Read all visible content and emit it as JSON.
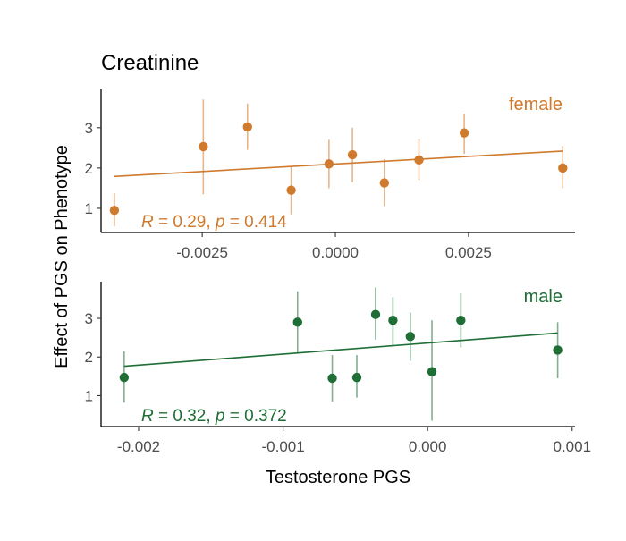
{
  "chart_data": {
    "type": "scatter",
    "title": "Creatinine",
    "ylabel": "Effect of PGS on Phenotype",
    "xlabel": "Testosterone PGS",
    "panels": [
      {
        "name": "female",
        "color": "#D07A2E",
        "stat_text": {
          "r_symbol": "R",
          "r_value": " = 0.29, ",
          "p_symbol": "p",
          "p_value": " = 0.414"
        },
        "xlim": [
          -0.0044,
          0.0045
        ],
        "ylim": [
          0.4,
          3.95
        ],
        "xticks": [
          -0.0025,
          0.0,
          0.0025
        ],
        "xtick_labels": [
          "-0.0025",
          "0.0000",
          "0.0025"
        ],
        "yticks": [
          1,
          2,
          3
        ],
        "ytick_labels": [
          "1",
          "2",
          "3"
        ],
        "points": [
          {
            "x": -0.00415,
            "y": 0.95,
            "lo": 0.55,
            "hi": 1.38
          },
          {
            "x": -0.00248,
            "y": 2.53,
            "lo": 1.35,
            "hi": 3.7
          },
          {
            "x": -0.00165,
            "y": 3.02,
            "lo": 2.45,
            "hi": 3.6
          },
          {
            "x": -0.00083,
            "y": 1.45,
            "lo": 0.85,
            "hi": 2.05
          },
          {
            "x": -0.00012,
            "y": 2.1,
            "lo": 1.5,
            "hi": 2.7
          },
          {
            "x": 0.00032,
            "y": 2.33,
            "lo": 1.65,
            "hi": 3.0
          },
          {
            "x": 0.00092,
            "y": 1.63,
            "lo": 1.05,
            "hi": 2.22
          },
          {
            "x": 0.00157,
            "y": 2.2,
            "lo": 1.7,
            "hi": 2.72
          },
          {
            "x": 0.00242,
            "y": 2.87,
            "lo": 2.35,
            "hi": 3.35
          },
          {
            "x": 0.00427,
            "y": 2.0,
            "lo": 1.5,
            "hi": 2.55
          }
        ],
        "trend": {
          "x0": -0.00415,
          "y0": 1.79,
          "x1": 0.00427,
          "y1": 2.42
        }
      },
      {
        "name": "male",
        "color": "#1E6E35",
        "stat_text": {
          "r_symbol": "R",
          "r_value": " = 0.32, ",
          "p_symbol": "p",
          "p_value": " = 0.372"
        },
        "xlim": [
          -0.00226,
          0.00102
        ],
        "ylim": [
          0.2,
          3.95
        ],
        "xticks": [
          -0.002,
          -0.001,
          0.0,
          0.001
        ],
        "xtick_labels": [
          "-0.002",
          "-0.001",
          "0.000",
          "0.001"
        ],
        "yticks": [
          1,
          2,
          3
        ],
        "yticks_labels_note": "",
        "ytick_labels": [
          "1",
          "2",
          "3"
        ],
        "points": [
          {
            "x": -0.0021,
            "y": 1.47,
            "lo": 0.82,
            "hi": 2.15
          },
          {
            "x": -0.0009,
            "y": 2.9,
            "lo": 2.1,
            "hi": 3.7
          },
          {
            "x": -0.00066,
            "y": 1.45,
            "lo": 0.85,
            "hi": 2.05
          },
          {
            "x": -0.00049,
            "y": 1.47,
            "lo": 0.95,
            "hi": 2.05
          },
          {
            "x": -0.00036,
            "y": 3.1,
            "lo": 2.45,
            "hi": 3.8
          },
          {
            "x": -0.00024,
            "y": 2.95,
            "lo": 2.3,
            "hi": 3.55
          },
          {
            "x": -0.00012,
            "y": 2.53,
            "lo": 1.9,
            "hi": 3.15
          },
          {
            "x": 3e-05,
            "y": 1.62,
            "lo": 0.35,
            "hi": 2.95
          },
          {
            "x": 0.00023,
            "y": 2.95,
            "lo": 2.25,
            "hi": 3.65
          },
          {
            "x": 0.0009,
            "y": 2.18,
            "lo": 1.45,
            "hi": 2.9
          }
        ],
        "trend": {
          "x0": -0.0021,
          "y0": 1.76,
          "x1": 0.0009,
          "y1": 2.62
        }
      }
    ]
  }
}
